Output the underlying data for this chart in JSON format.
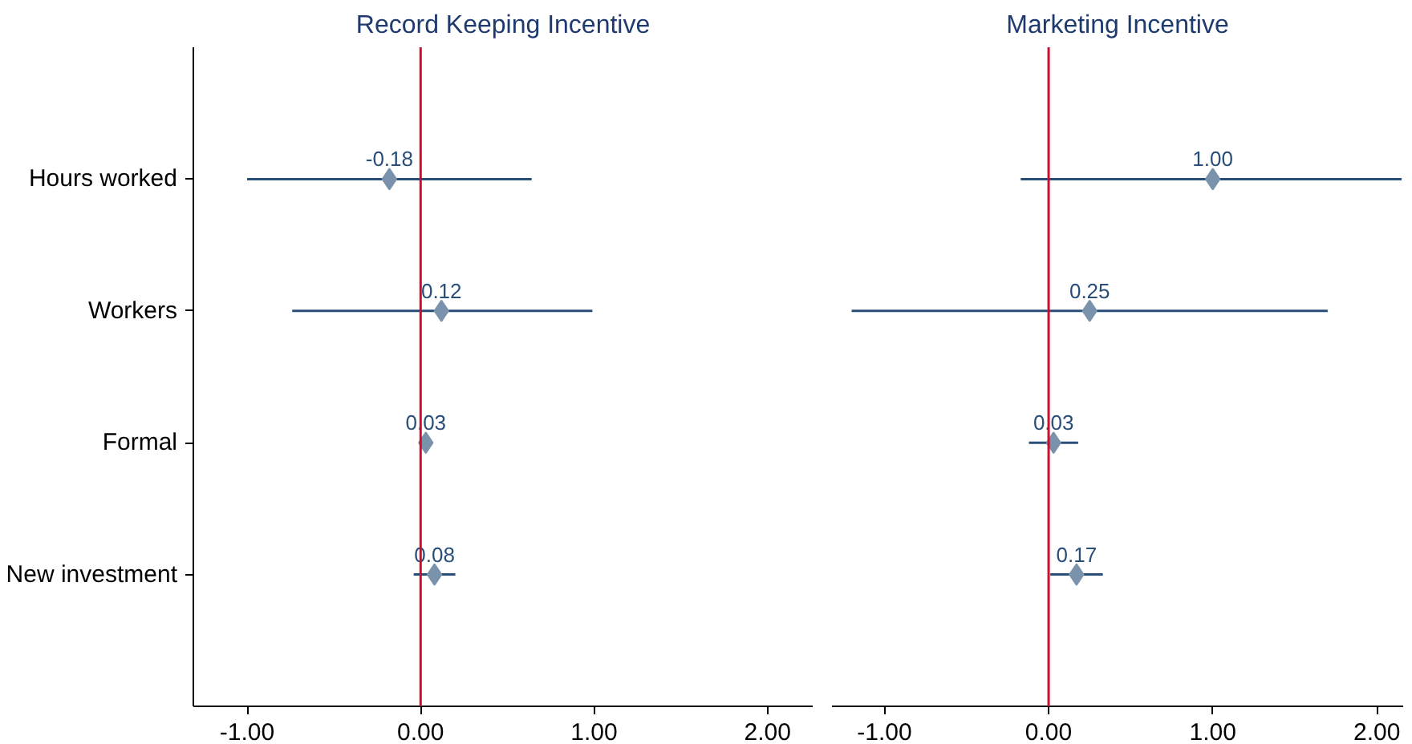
{
  "chart_data": [
    {
      "type": "scatter",
      "orientation": "horizontal",
      "title": "Record Keeping Incentive",
      "categories": [
        "Hours worked",
        "Workers",
        "Formal",
        "New investment"
      ],
      "series": [
        {
          "color": "#7a92ab",
          "values": [
            -0.18,
            0.12,
            0.03,
            0.08
          ],
          "value_labels": [
            "-0.18",
            "0.12",
            "0.03",
            "0.08"
          ],
          "errors": [
            [
              -1.0,
              0.64
            ],
            [
              -0.74,
              0.99
            ],
            null,
            [
              -0.04,
              0.2
            ]
          ]
        }
      ],
      "marker": "diamond",
      "xlim": [
        -1.31,
        2.26
      ],
      "xticks": [
        {
          "value": -1,
          "label": "-1.00"
        },
        {
          "value": 0,
          "label": "0.00"
        },
        {
          "value": 1,
          "label": "1.00"
        },
        {
          "value": 2,
          "label": "2.00"
        }
      ],
      "ref_lines": [
        {
          "axis": "x",
          "value": 0,
          "color": "#c8102e"
        }
      ],
      "grid": false
    },
    {
      "type": "scatter",
      "orientation": "horizontal",
      "title": "Marketing Incentive",
      "categories": [
        null,
        null,
        null,
        null
      ],
      "series": [
        {
          "color": "#7a92ab",
          "values": [
            1.0,
            0.25,
            0.03,
            0.17
          ],
          "value_labels": [
            "1.00",
            "0.25",
            "0.03",
            "0.17"
          ],
          "errors": [
            [
              -0.17,
              2.15
            ],
            [
              -1.2,
              1.7
            ],
            [
              -0.12,
              0.18
            ],
            [
              0.01,
              0.33
            ]
          ]
        }
      ],
      "marker": "diamond",
      "xlim": [
        -1.32,
        2.16
      ],
      "tick_labels": "x",
      "xticks": [
        {
          "value": -1,
          "label": "-1.00"
        },
        {
          "value": 0,
          "label": "0.00"
        },
        {
          "value": 1,
          "label": "1.00"
        },
        {
          "value": 2,
          "label": "2.00"
        }
      ],
      "ref_lines": [
        {
          "axis": "x",
          "value": 0,
          "color": "#c8102e"
        }
      ],
      "grid": false
    }
  ]
}
